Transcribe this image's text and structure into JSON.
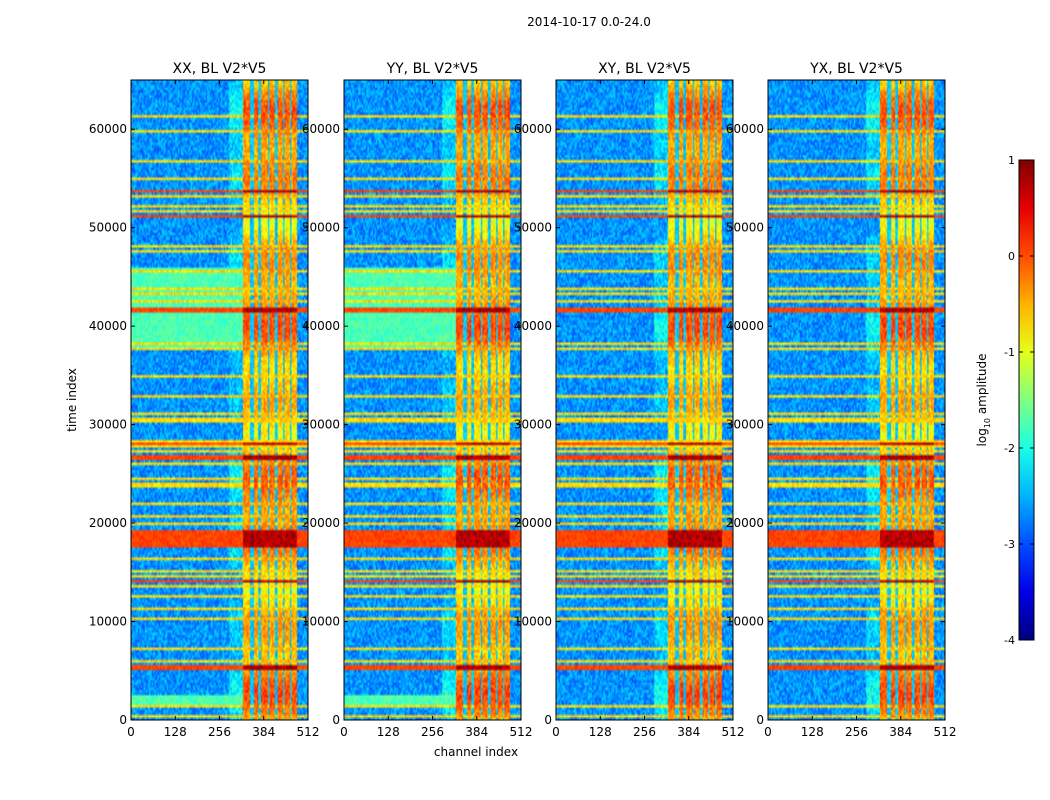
{
  "chart_data": {
    "type": "heatmap",
    "suptitle": "2014-10-17 0.0-24.0",
    "xlabel": "channel index",
    "ylabel": "time index",
    "x_ticks": [
      0,
      128,
      256,
      384,
      512
    ],
    "y_ticks": [
      0,
      10000,
      20000,
      30000,
      40000,
      50000,
      60000
    ],
    "xlim": [
      0,
      512
    ],
    "ylim": [
      0,
      65000
    ],
    "colorbar": {
      "label": "log",
      "label_sub": "10",
      "label_rest": " amplitude",
      "range": [
        -4,
        1
      ],
      "ticks": [
        1,
        0,
        -1,
        -2,
        -3,
        -4
      ],
      "colormap": "jet"
    },
    "panels": [
      {
        "title": "XX, BL V2*V5",
        "pol": "XX"
      },
      {
        "title": "YY, BL V2*V5",
        "pol": "YY"
      },
      {
        "title": "XY, BL V2*V5",
        "pol": "XY"
      },
      {
        "title": "YX, BL V2*V5",
        "pol": "YX"
      }
    ],
    "rfi_channel_band": [
      325,
      480
    ],
    "strong_rfi_time_bands": [
      [
        17500,
        19200
      ],
      [
        5200,
        5600
      ],
      [
        14000,
        14300
      ],
      [
        41500,
        42000
      ],
      [
        51000,
        51400
      ],
      [
        53500,
        53800
      ],
      [
        28000,
        28300
      ],
      [
        26500,
        26800
      ]
    ],
    "elevated_time_bands_parallel": [
      [
        37500,
        46000
      ],
      [
        1500,
        2500
      ]
    ]
  }
}
